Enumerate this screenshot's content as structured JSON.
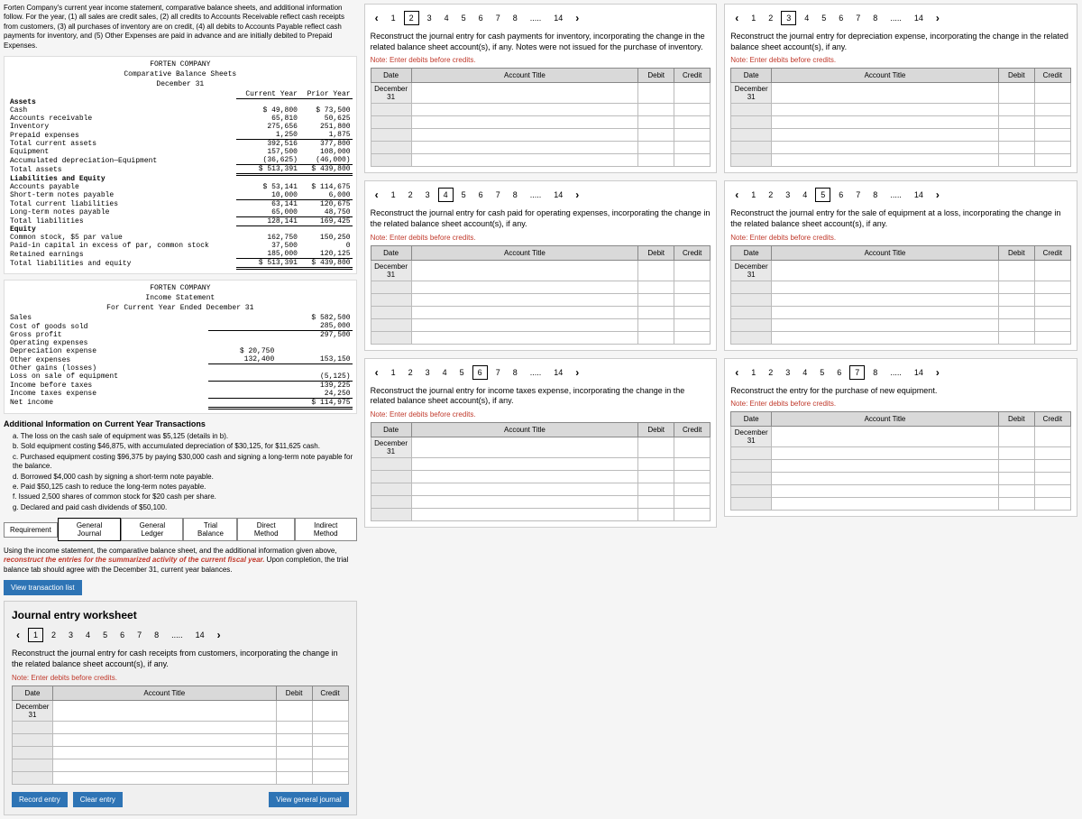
{
  "intro": "Forten Company's current year income statement, comparative balance sheets, and additional information follow. For the year, (1) all sales are credit sales, (2) all credits to Accounts Receivable reflect cash receipts from customers, (3) all purchases of inventory are on credit, (4) all debits to Accounts Payable reflect cash payments for inventory, and (5) Other Expenses are paid in advance and are initially debited to Prepaid Expenses.",
  "bs": {
    "company": "FORTEN COMPANY",
    "title": "Comparative Balance Sheets",
    "date": "December 31",
    "col1": "Current Year",
    "col2": "Prior Year",
    "sections": {
      "assets_hdr": "Assets",
      "liab_hdr": "Liabilities and Equity",
      "equity_hdr": "Equity"
    },
    "rows": [
      [
        "Cash",
        "$ 49,800",
        "$ 73,500"
      ],
      [
        "Accounts receivable",
        "65,810",
        "50,625"
      ],
      [
        "Inventory",
        "275,656",
        "251,800"
      ],
      [
        "Prepaid expenses",
        "1,250",
        "1,875"
      ],
      [
        "Total current assets",
        "392,516",
        "377,800"
      ],
      [
        "Equipment",
        "157,500",
        "108,000"
      ],
      [
        "Accumulated depreciation—Equipment",
        "(36,625)",
        "(46,000)"
      ],
      [
        "Total assets",
        "$ 513,391",
        "$ 439,800"
      ],
      [
        "Accounts payable",
        "$ 53,141",
        "$ 114,675"
      ],
      [
        "Short-term notes payable",
        "10,000",
        "6,000"
      ],
      [
        "Total current liabilities",
        "63,141",
        "120,675"
      ],
      [
        "Long-term notes payable",
        "65,000",
        "48,750"
      ],
      [
        "Total liabilities",
        "128,141",
        "169,425"
      ],
      [
        "Common stock, $5 par value",
        "162,750",
        "150,250"
      ],
      [
        "Paid-in capital in excess of par, common stock",
        "37,500",
        "0"
      ],
      [
        "Retained earnings",
        "185,000",
        "120,125"
      ],
      [
        "Total liabilities and equity",
        "$ 513,391",
        "$ 439,800"
      ]
    ]
  },
  "is": {
    "company": "FORTEN COMPANY",
    "title": "Income Statement",
    "period": "For Current Year Ended December 31",
    "rows": [
      [
        "Sales",
        "",
        "$ 582,500"
      ],
      [
        "Cost of goods sold",
        "",
        "285,000"
      ],
      [
        "Gross profit",
        "",
        "297,500"
      ],
      [
        "Operating expenses",
        "",
        ""
      ],
      [
        "  Depreciation expense",
        "$ 20,750",
        ""
      ],
      [
        "  Other expenses",
        "132,400",
        "153,150"
      ],
      [
        "Other gains (losses)",
        "",
        ""
      ],
      [
        "  Loss on sale of equipment",
        "",
        "(5,125)"
      ],
      [
        "Income before taxes",
        "",
        "139,225"
      ],
      [
        "Income taxes expense",
        "",
        "24,250"
      ],
      [
        "Net income",
        "",
        "$ 114,975"
      ]
    ]
  },
  "addl_title": "Additional Information on Current Year Transactions",
  "addl": [
    "a. The loss on the cash sale of equipment was $5,125 (details in b).",
    "b. Sold equipment costing $46,875, with accumulated depreciation of $30,125, for $11,625 cash.",
    "c. Purchased equipment costing $96,375 by paying $30,000 cash and signing a long-term note payable for the balance.",
    "d. Borrowed $4,000 cash by signing a short-term note payable.",
    "e. Paid $50,125 cash to reduce the long-term notes payable.",
    "f. Issued 2,500 shares of common stock for $20 cash per share.",
    "g. Declared and paid cash dividends of $50,100."
  ],
  "req_label": "Requirement",
  "req_tabs": [
    "General Journal",
    "General Ledger",
    "Trial Balance",
    "Direct Method",
    "Indirect Method"
  ],
  "main_instruction_pre": "Using the income statement, the comparative balance sheet, and the additional information given above, ",
  "main_instruction_b": "reconstruct the entries for the summarized activity of the current fiscal year.",
  "main_instruction_post": " Upon completion, the trial balance tab should agree with the December 31, current year balances.",
  "view_txn": "View transaction list",
  "ws_title": "Journal entry worksheet",
  "pages": [
    "1",
    "2",
    "3",
    "4",
    "5",
    "6",
    "7",
    "8",
    ".....",
    "14"
  ],
  "note": "Note: Enter debits before credits.",
  "th": {
    "date": "Date",
    "acct": "Account Title",
    "debit": "Debit",
    "credit": "Credit"
  },
  "date": "December 31",
  "record": "Record entry",
  "clear": "Clear entry",
  "viewgen": "View general journal",
  "panels": {
    "p1": {
      "sel": 1,
      "prompt": "Reconstruct the journal entry for cash receipts from customers, incorporating the change in the related balance sheet account(s), if any."
    },
    "p2": {
      "sel": 2,
      "prompt": "Reconstruct the journal entry for cash payments for inventory, incorporating the change in the related balance sheet account(s), if any. Notes were not issued for the purchase of inventory."
    },
    "p3": {
      "sel": 3,
      "prompt": "Reconstruct the journal entry for depreciation expense, incorporating the change in the related balance sheet account(s), if any."
    },
    "p4": {
      "sel": 4,
      "prompt": "Reconstruct the journal entry for cash paid for operating expenses, incorporating the change in the related balance sheet account(s), if any."
    },
    "p5": {
      "sel": 5,
      "prompt": "Reconstruct the journal entry for the sale of equipment at a loss, incorporating the change in the related balance sheet account(s), if any."
    },
    "p6": {
      "sel": 6,
      "prompt": "Reconstruct the journal entry for income taxes expense, incorporating the change in the related balance sheet account(s), if any."
    },
    "p7": {
      "sel": 7,
      "prompt": "Reconstruct the entry for the purchase of new equipment."
    }
  },
  "colors": {
    "accent": "#2e74b5",
    "red": "#c0392b",
    "header_bg": "#d9d9d9",
    "border": "#888"
  }
}
